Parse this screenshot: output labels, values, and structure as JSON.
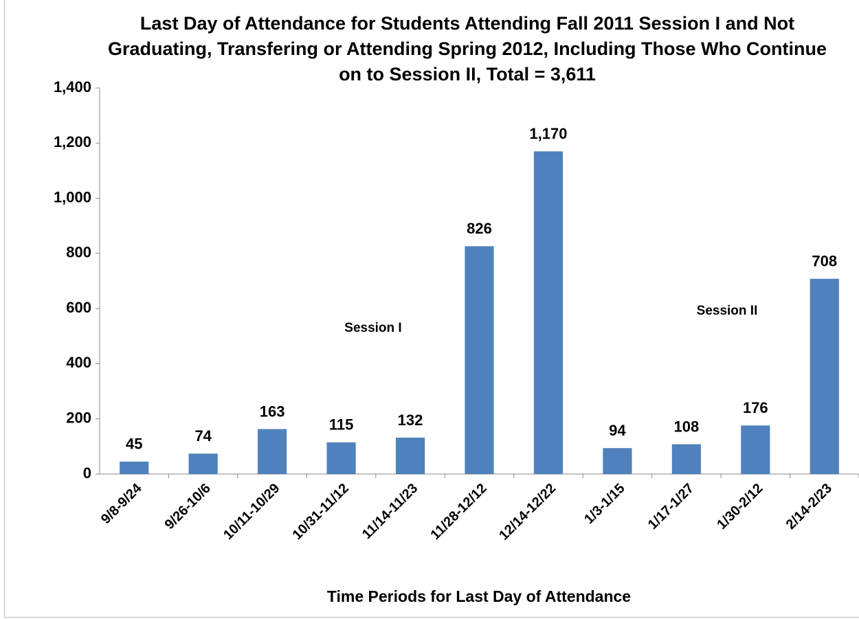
{
  "chart_data": {
    "type": "bar",
    "title": "Last Day of Attendance for Students Attending Fall 2011 Session I and Not Graduating, Transfering or Attending Spring 2012, Including Those Who Continue on to Session II, Total = 3,611",
    "x_label": "Time Periods for Last Day of Attendance",
    "categories": [
      "9/8-9/24",
      "9/26-10/6",
      "10/11-10/29",
      "10/31-11/12",
      "11/14-11/23",
      "11/28-12/12",
      "12/14-12/22",
      "1/3-1/15",
      "1/17-1/27",
      "1/30-2/12",
      "2/14-2/23"
    ],
    "values": [
      45,
      74,
      163,
      115,
      132,
      826,
      1170,
      94,
      108,
      176,
      708
    ],
    "value_labels": [
      "45",
      "74",
      "163",
      "115",
      "132",
      "826",
      "1,170",
      "94",
      "108",
      "176",
      "708"
    ],
    "color": "#4f81bd",
    "ylim": [
      0,
      1400
    ],
    "yticks": [
      0,
      200,
      400,
      600,
      800,
      {
        "value": 1000,
        "label": "1,000"
      },
      {
        "value": 1200,
        "label": "1,200"
      },
      {
        "value": 1400,
        "label": "1,400"
      }
    ],
    "grid": false,
    "annotations": [
      "Session I",
      "Session II"
    ]
  }
}
